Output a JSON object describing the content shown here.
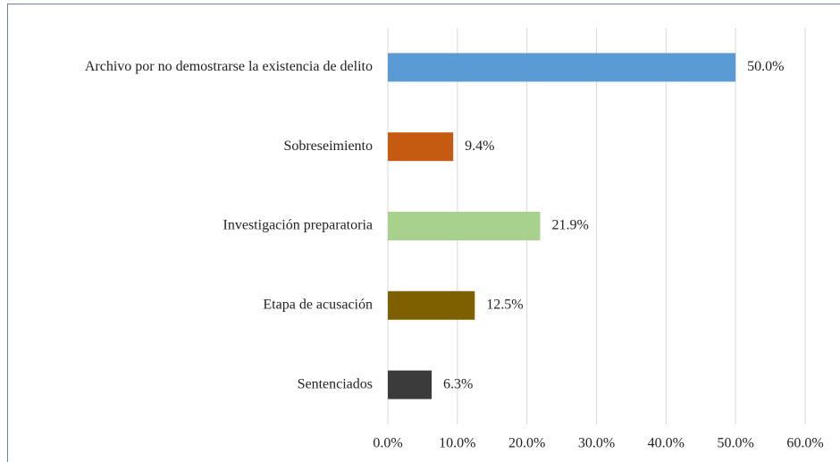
{
  "chart_data": {
    "type": "bar",
    "orientation": "horizontal",
    "categories": [
      "Archivo por no demostrarse la existencia de delito",
      "Sobreseimiento",
      "Investigación preparatoria",
      "Etapa de acusación",
      "Sentenciados"
    ],
    "values": [
      50.0,
      9.4,
      21.9,
      12.5,
      6.3
    ],
    "value_labels": [
      "50.0%",
      "9.4%",
      "21.9%",
      "12.5%",
      "6.3%"
    ],
    "colors": [
      "#5b9bd5",
      "#c55a11",
      "#a9d18e",
      "#7f6000",
      "#3b3b3b"
    ],
    "xlim": [
      0,
      60
    ],
    "xticks": [
      {
        "value": 0,
        "label": "0.0%"
      },
      {
        "value": 10,
        "label": "10.0%"
      },
      {
        "value": 20,
        "label": "20.0%"
      },
      {
        "value": 30,
        "label": "30.0%"
      },
      {
        "value": 40,
        "label": "40.0%"
      },
      {
        "value": 50,
        "label": "50.0%"
      },
      {
        "value": 60,
        "label": "60.0%"
      }
    ],
    "grid": true
  }
}
